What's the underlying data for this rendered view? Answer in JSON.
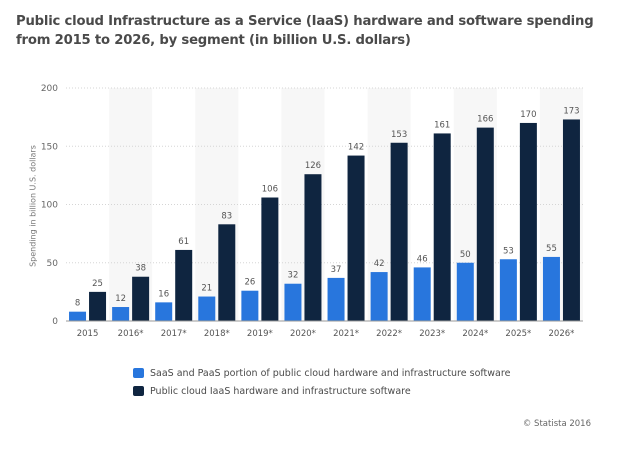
{
  "chart_data": {
    "type": "bar",
    "title": "Public cloud Infrastructure as a Service (IaaS) hardware and software spending from 2015 to 2026, by segment (in billion U.S. dollars)",
    "xlabel": "",
    "ylabel": "Spending in billion U.S. dollars",
    "ylim": [
      0,
      200
    ],
    "yticks": [
      0,
      50,
      100,
      150,
      200
    ],
    "grid": true,
    "legend_position": "bottom-left",
    "categories": [
      "2015",
      "2016*",
      "2017*",
      "2018*",
      "2019*",
      "2020*",
      "2021*",
      "2022*",
      "2023*",
      "2024*",
      "2025*",
      "2026*"
    ],
    "series": [
      {
        "name": "SaaS and PaaS portion of public cloud hardware and infrastructure software",
        "color": "#2876dd",
        "values": [
          8,
          12,
          16,
          21,
          26,
          32,
          37,
          42,
          46,
          50,
          53,
          55
        ]
      },
      {
        "name": "Public cloud IaaS hardware and infrastructure software",
        "color": "#0f2540",
        "values": [
          25,
          38,
          61,
          83,
          106,
          126,
          142,
          153,
          161,
          166,
          170,
          173
        ]
      }
    ]
  },
  "credit": "© Statista 2016"
}
